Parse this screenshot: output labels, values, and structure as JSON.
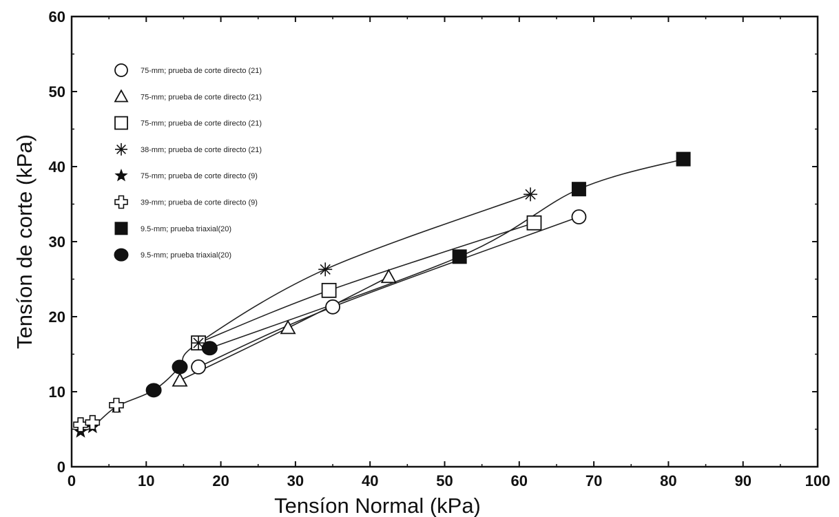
{
  "chart_data": {
    "type": "scatter",
    "title": "",
    "xlabel": "Tensíon Normal (kPa)",
    "ylabel": "Tensíon de corte (kPa)",
    "xlim": [
      0,
      100
    ],
    "ylim": [
      0,
      60
    ],
    "xticks": [
      0,
      10,
      20,
      30,
      40,
      50,
      60,
      70,
      80,
      90,
      100
    ],
    "yticks": [
      0,
      10,
      20,
      30,
      40,
      50,
      60
    ],
    "grid": false,
    "legend_position": "top-left",
    "series": [
      {
        "name": "75-mm; prueba de corte directo (21)",
        "marker": "circle-open",
        "x": [
          17,
          35,
          68
        ],
        "y": [
          13.3,
          21.3,
          33.3
        ]
      },
      {
        "name": "75-mm; prueba de corte directo (21)",
        "marker": "triangle-open",
        "x": [
          14.5,
          29,
          42.5
        ],
        "y": [
          11.5,
          18.5,
          25.3
        ]
      },
      {
        "name": "75-mm; prueba de corte directo (21)",
        "marker": "square-open",
        "x": [
          17,
          34.5,
          62
        ],
        "y": [
          16.5,
          23.5,
          32.5
        ]
      },
      {
        "name": "38-mm; prueba de corte directo (21)",
        "marker": "asterisk",
        "x": [
          17,
          34,
          61.5
        ],
        "y": [
          16.5,
          26.3,
          36.3
        ]
      },
      {
        "name": "75-mm; prueba de corte directo (9)",
        "marker": "star-filled",
        "x": [
          1.2,
          2.8,
          6
        ],
        "y": [
          4.7,
          5.3,
          8
        ]
      },
      {
        "name": "39-mm; prueba de corte directo (9)",
        "marker": "plus-open",
        "x": [
          1.2,
          2.8,
          6
        ],
        "y": [
          5.6,
          5.9,
          8.2
        ]
      },
      {
        "name": "9.5-mm; prueba triaxial(20)",
        "marker": "square-filled",
        "x": [
          52,
          68,
          82
        ],
        "y": [
          28,
          37,
          41
        ]
      },
      {
        "name": "9.5-mm; prueba triaxial(20)",
        "marker": "circle-filled",
        "x": [
          11,
          14.5,
          18.5
        ],
        "y": [
          10.2,
          13.3,
          15.8
        ]
      }
    ],
    "curves": [
      {
        "x": [
          1.2,
          2.8,
          6,
          11,
          14.5,
          17,
          34,
          61.5
        ],
        "y": [
          4.7,
          5.3,
          8,
          10.2,
          13.3,
          16.5,
          26.3,
          36.3
        ]
      },
      {
        "x": [
          17,
          34.5,
          62
        ],
        "y": [
          16.5,
          23.5,
          32.5
        ]
      },
      {
        "x": [
          17,
          35,
          68
        ],
        "y": [
          13.3,
          21.3,
          33.3
        ]
      },
      {
        "x": [
          14.5,
          29,
          42.5
        ],
        "y": [
          11.5,
          18.5,
          25.3
        ]
      },
      {
        "x": [
          18.5,
          52,
          68,
          82
        ],
        "y": [
          15.8,
          28,
          37,
          41
        ]
      }
    ]
  }
}
